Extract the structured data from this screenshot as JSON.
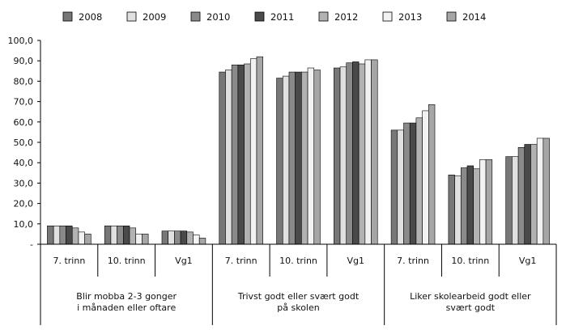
{
  "colors": {
    "2008": "#777777",
    "2009": "#e0e0e0",
    "2010": "#8a8a8a",
    "2011": "#4a4a4a",
    "2012": "#b2b2b2",
    "2013": "#f2f2f2",
    "2014": "#a6a6a6",
    "border": "#000000",
    "grid": "#000000"
  },
  "chart_data": {
    "type": "bar",
    "ylim": [
      0,
      100
    ],
    "yticks": [
      "-",
      "10,0",
      "20,0",
      "30,0",
      "40,0",
      "50,0",
      "60,0",
      "70,0",
      "80,0",
      "90,0",
      "100,0"
    ],
    "legend_position": "top",
    "series_names": [
      "2008",
      "2009",
      "2010",
      "2011",
      "2012",
      "2013",
      "2014"
    ],
    "groups": [
      {
        "label": "Blir mobba 2-3 gonger i månaden eller oftare",
        "label_lines": [
          "Blir mobba 2-3 gonger",
          "i månaden eller oftare"
        ],
        "categories": [
          {
            "label": "7. trinn",
            "values": [
              9,
              9,
              9,
              9,
              8,
              6,
              5
            ]
          },
          {
            "label": "10. trinn",
            "values": [
              9,
              9,
              9,
              9,
              8,
              5,
              5
            ]
          },
          {
            "label": "Vg1",
            "values": [
              6.5,
              6.5,
              6.5,
              6.5,
              6,
              4.5,
              3
            ]
          }
        ]
      },
      {
        "label": "Trivst godt eller svært godt på skolen",
        "label_lines": [
          "Trivst godt eller svært godt",
          "på skolen"
        ],
        "categories": [
          {
            "label": "7. trinn",
            "values": [
              84.5,
              85.5,
              88,
              88,
              88.5,
              91,
              92
            ]
          },
          {
            "label": "10. trinn",
            "values": [
              81.5,
              82.5,
              84.5,
              84.5,
              84.5,
              86.5,
              85.5
            ]
          },
          {
            "label": "Vg1",
            "values": [
              86.5,
              87,
              89,
              89.5,
              88.5,
              90.5,
              90.5
            ]
          }
        ]
      },
      {
        "label": "Liker skolearbeid godt eller svært godt",
        "label_lines": [
          "Liker skolearbeid godt eller",
          "svært godt"
        ],
        "categories": [
          {
            "label": "7. trinn",
            "values": [
              56,
              56,
              59.5,
              59.5,
              62,
              65.5,
              68.5
            ]
          },
          {
            "label": "10. trinn",
            "values": [
              34,
              33.5,
              37.5,
              38.5,
              37,
              41.5,
              41.5
            ]
          },
          {
            "label": "Vg1",
            "values": [
              43,
              43,
              47.5,
              49,
              49,
              52,
              52
            ]
          }
        ]
      }
    ]
  }
}
